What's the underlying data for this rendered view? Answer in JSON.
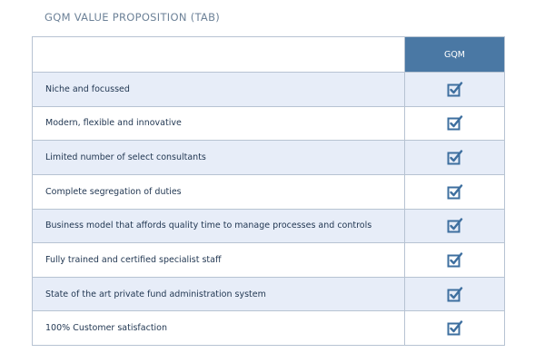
{
  "header": {
    "title": "GQM VALUE PROPOSITION (TAB)"
  },
  "table": {
    "columns": [
      "GQM"
    ],
    "rows": [
      "Niche and focussed",
      "Modern, flexible and innovative",
      "Limited number of select consultants",
      "Complete segregation of duties",
      "Business model that affords quality time to manage processes and controls",
      "Fully trained and certified specialist staff",
      "State of the art private fund administration system",
      "100% Customer satisfaction"
    ]
  }
}
